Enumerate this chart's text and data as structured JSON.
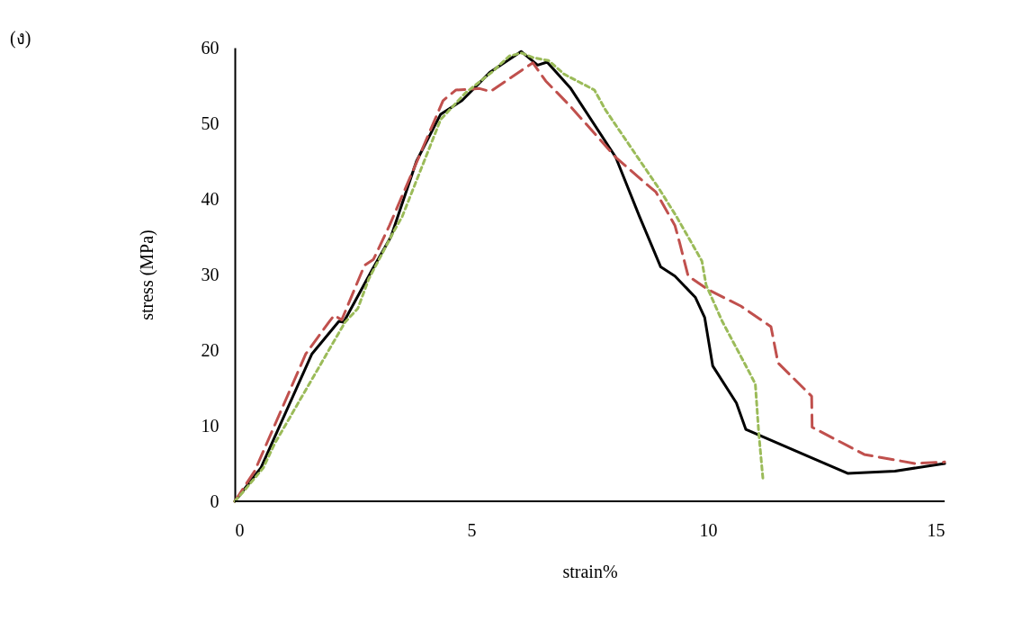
{
  "chart_data": {
    "type": "line",
    "xlabel": "strain%",
    "ylabel": "stress (MPa)",
    "annotations": [
      "(ง)"
    ],
    "xlim": [
      0,
      15
    ],
    "ylim": [
      0,
      60
    ],
    "xticks": [
      0,
      5,
      10,
      15
    ],
    "yticks": [
      0,
      10,
      20,
      30,
      40,
      50,
      60
    ],
    "grid": false,
    "marker": "none",
    "series": [
      {
        "color": "#000000",
        "line_style": "solid",
        "x": [
          0,
          0.55,
          1.63,
          2.2,
          2.3,
          2.9,
          3.3,
          3.84,
          4.35,
          4.8,
          5.4,
          6.05,
          6.4,
          6.6,
          7.1,
          8.05,
          8.55,
          9.0,
          9.3,
          9.73,
          9.93,
          10.1,
          10.6,
          10.8,
          12.95,
          13.95,
          15.0
        ],
        "values": [
          0,
          4.4,
          19.5,
          23.8,
          23.7,
          30.6,
          35,
          45,
          51.2,
          53,
          56.8,
          59.5,
          57.7,
          58.1,
          54.6,
          45.5,
          37.7,
          31,
          29.8,
          27,
          24.3,
          17.9,
          13,
          9.5,
          3.7,
          4,
          5
        ]
      },
      {
        "color": "#c0504d",
        "line_style": "dashed",
        "x": [
          0,
          0.42,
          1.5,
          2.0,
          2.1,
          2.26,
          2.74,
          2.93,
          3.27,
          4.4,
          4.67,
          5.17,
          5.4,
          6.06,
          6.3,
          6.57,
          7.07,
          8.05,
          8.67,
          8.9,
          9.3,
          9.4,
          9.58,
          10.0,
          10.7,
          11.33,
          11.48,
          12.19,
          12.2,
          13.3,
          14.37,
          15.0
        ],
        "values": [
          0,
          4,
          19.5,
          23.8,
          24.6,
          24,
          31.2,
          32,
          36.5,
          53,
          54.4,
          54.6,
          54.2,
          57,
          58,
          55.6,
          52.4,
          45.5,
          42.1,
          40.9,
          36.5,
          34.2,
          29.8,
          28,
          25.8,
          23.1,
          18.3,
          13.9,
          9.8,
          6.2,
          5,
          5.2
        ]
      },
      {
        "color": "#9bbb59",
        "line_style": "dotted",
        "x": [
          0,
          0.17,
          0.6,
          0.84,
          2.33,
          2.6,
          2.83,
          3.36,
          3.54,
          4.35,
          4.87,
          5.44,
          5.8,
          6.06,
          6.3,
          6.63,
          6.96,
          7.6,
          7.83,
          8.1,
          8.97,
          9.33,
          9.87,
          9.96,
          10.3,
          10.87,
          11.0,
          11.07,
          11.16
        ],
        "values": [
          0,
          1.2,
          4.4,
          7.6,
          23.7,
          25.5,
          29.4,
          35.7,
          37.7,
          50.5,
          54,
          56.8,
          58.9,
          59.3,
          58.7,
          58.3,
          56.5,
          54.4,
          51.8,
          49.3,
          41.3,
          37.7,
          31.8,
          28.6,
          23.8,
          17.1,
          15.5,
          9.2,
          3
        ]
      }
    ]
  }
}
